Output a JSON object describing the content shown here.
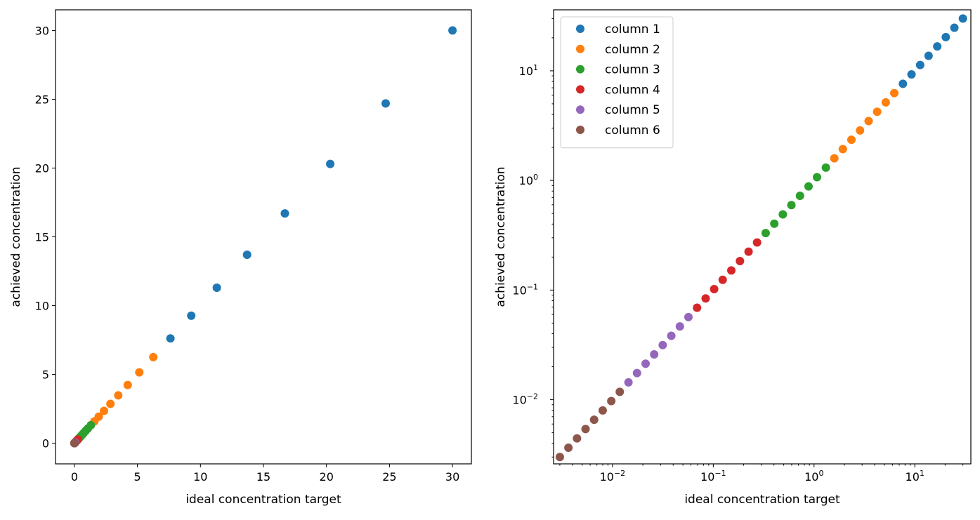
{
  "chart_data": [
    {
      "type": "scatter",
      "xlabel": "ideal concentration target",
      "ylabel": "achieved concentration",
      "xscale": "linear",
      "yscale": "linear",
      "xlim": [
        -1.5,
        31.5
      ],
      "ylim": [
        -1.5,
        31.5
      ],
      "xticks": [
        0,
        5,
        10,
        15,
        20,
        25,
        30
      ],
      "yticks": [
        0,
        5,
        10,
        15,
        20,
        25,
        30
      ],
      "xtick_labels": [
        "0",
        "5",
        "10",
        "15",
        "20",
        "25",
        "30"
      ],
      "ytick_labels": [
        "0",
        "5",
        "10",
        "15",
        "20",
        "25",
        "30"
      ],
      "grid": false,
      "legend": "none",
      "series_ref": "series"
    },
    {
      "type": "scatter",
      "xlabel": "ideal concentration target",
      "ylabel": "achieved concentration",
      "xscale": "log",
      "yscale": "log",
      "xlim": [
        0.0026,
        36
      ],
      "ylim": [
        0.0026,
        36
      ],
      "xticks": [
        0.01,
        0.1,
        1,
        10
      ],
      "yticks": [
        0.01,
        0.1,
        1,
        10
      ],
      "xtick_labels": [
        [
          "10",
          "−2"
        ],
        [
          "10",
          "−1"
        ],
        [
          "10",
          "0"
        ],
        [
          "10",
          "1"
        ]
      ],
      "ytick_labels": [
        [
          "10",
          "−2"
        ],
        [
          "10",
          "−1"
        ],
        [
          "10",
          "0"
        ],
        [
          "10",
          "1"
        ]
      ],
      "grid": false,
      "legend": "top-left",
      "series_ref": "series"
    }
  ],
  "series": [
    {
      "name": "column 1",
      "color": "#1f77b4",
      "x": [
        30.0,
        24.7,
        20.3,
        16.7,
        13.7,
        11.3,
        9.27,
        7.62
      ],
      "y": [
        30.0,
        24.7,
        20.3,
        16.7,
        13.7,
        11.3,
        9.27,
        7.62
      ]
    },
    {
      "name": "column 2",
      "color": "#ff7f0e",
      "x": [
        6.26,
        5.15,
        4.23,
        3.48,
        2.86,
        2.35,
        1.93,
        1.59
      ],
      "y": [
        6.26,
        5.15,
        4.23,
        3.48,
        2.86,
        2.35,
        1.93,
        1.59
      ]
    },
    {
      "name": "column 3",
      "color": "#2ca02c",
      "x": [
        1.31,
        1.07,
        0.882,
        0.725,
        0.596,
        0.49,
        0.403,
        0.331
      ],
      "y": [
        1.31,
        1.07,
        0.882,
        0.725,
        0.596,
        0.49,
        0.403,
        0.331
      ]
    },
    {
      "name": "column 4",
      "color": "#d62728",
      "x": [
        0.272,
        0.224,
        0.184,
        0.151,
        0.124,
        0.102,
        0.084,
        0.069
      ],
      "y": [
        0.272,
        0.224,
        0.184,
        0.151,
        0.124,
        0.102,
        0.084,
        0.069
      ]
    },
    {
      "name": "column 5",
      "color": "#9467bd",
      "x": [
        0.0567,
        0.0466,
        0.0383,
        0.0315,
        0.0259,
        0.0213,
        0.0175,
        0.0144
      ],
      "y": [
        0.0567,
        0.0466,
        0.0383,
        0.0315,
        0.0259,
        0.0213,
        0.0175,
        0.0144
      ]
    },
    {
      "name": "column 6",
      "color": "#8c564b",
      "x": [
        0.0118,
        0.00972,
        0.00799,
        0.00657,
        0.0054,
        0.00444,
        0.00365,
        0.003
      ],
      "y": [
        0.0118,
        0.00972,
        0.00799,
        0.00657,
        0.0054,
        0.00444,
        0.00365,
        0.003
      ]
    }
  ]
}
